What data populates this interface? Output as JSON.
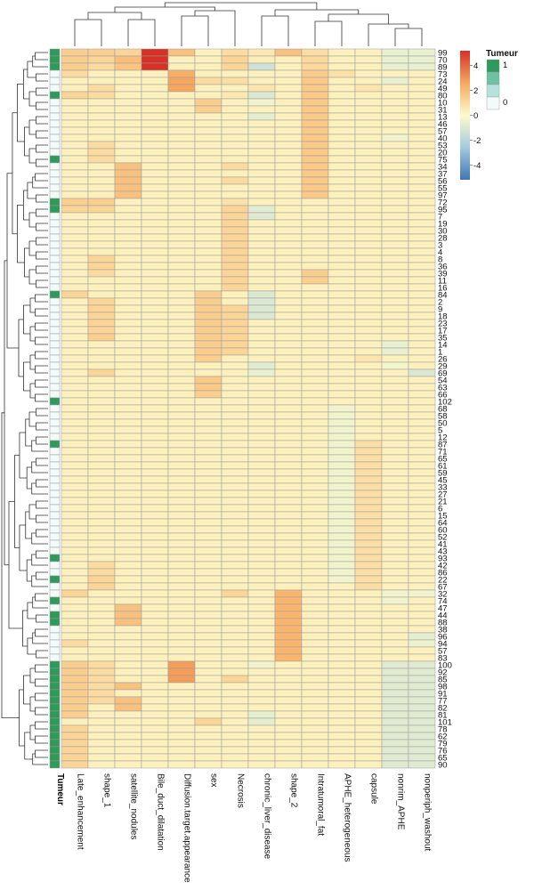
{
  "chart_data": {
    "type": "heatmap",
    "title": "",
    "columns": [
      "Late_enhancement",
      "shape_1",
      "satellite_nodules",
      "Bile_duct_dilatation",
      "Diffusion.target.appearance",
      "sex",
      "Necrosis",
      "chronic_liver_disease",
      "shape_2",
      "Intratumoral_fat",
      "APHE_heterogeneous",
      "capsule",
      "nonrim_APHE",
      "nonperiph_washout"
    ],
    "rows": [
      "99",
      "70",
      "89",
      "73",
      "24",
      "49",
      "80",
      "10",
      "31",
      "13",
      "46",
      "57",
      "40",
      "53",
      "20",
      "75",
      "34",
      "37",
      "56",
      "55",
      "97",
      "72",
      "95",
      "7",
      "19",
      "30",
      "28",
      "3",
      "4",
      "8",
      "36",
      "39",
      "11",
      "16",
      "84",
      "2",
      "9",
      "18",
      "23",
      "17",
      "35",
      "14",
      "1",
      "26",
      "29",
      "69",
      "54",
      "63",
      "66",
      "102",
      "68",
      "58",
      "50",
      "5",
      "12",
      "87",
      "71",
      "65",
      "61",
      "59",
      "45",
      "33",
      "27",
      "21",
      "6",
      "15",
      "64",
      "60",
      "52",
      "41",
      "43",
      "93",
      "42",
      "86",
      "22",
      "67",
      "32",
      "74",
      "47",
      "44",
      "88",
      "38",
      "96",
      "94",
      "57",
      "83",
      "100",
      "92",
      "85",
      "98",
      "91",
      "77",
      "82",
      "81",
      "101",
      "78",
      "62",
      "79",
      "76",
      "65",
      "90"
    ],
    "tumeur": [
      1,
      1,
      1,
      0,
      0,
      0,
      1,
      0,
      0,
      0,
      0,
      0,
      0,
      0,
      0,
      1,
      0,
      0,
      0,
      0,
      0,
      1,
      1,
      0,
      0,
      0,
      0,
      0,
      0,
      0,
      0,
      0,
      0,
      0,
      1,
      0,
      0,
      0,
      0,
      0,
      0,
      0,
      0,
      0,
      0,
      0,
      0,
      0,
      0,
      1,
      0,
      0,
      0,
      0,
      0,
      1,
      0,
      0,
      0,
      0,
      0,
      0,
      0,
      0,
      0,
      0,
      0,
      0,
      0,
      0,
      0,
      1,
      0,
      0,
      1,
      0,
      0,
      1,
      0,
      1,
      1,
      0,
      0,
      0,
      0,
      0,
      1,
      1,
      1,
      1,
      1,
      1,
      1,
      1,
      1,
      1,
      1,
      1,
      1,
      1,
      1
    ],
    "annotation_label": "Tumeur",
    "annotation_legend": {
      "title": "Tumeur",
      "levels": [
        "1",
        "0"
      ],
      "colors": [
        "#2e9a5b",
        "#f2fafa"
      ]
    },
    "color_scale": {
      "ticks": [
        4,
        2,
        0,
        -2,
        -4
      ],
      "range": [
        -5.2,
        5.2
      ],
      "stops": [
        {
          "v": -5.2,
          "c": "#3e78b6"
        },
        {
          "v": -2.5,
          "c": "#a9cce0"
        },
        {
          "v": 0,
          "c": "#fdfbc9"
        },
        {
          "v": 2.5,
          "c": "#f8ab62"
        },
        {
          "v": 5.2,
          "c": "#d73027"
        }
      ]
    },
    "values_note_default": 0.3,
    "cells": [
      [
        0,
        0,
        1.4
      ],
      [
        0,
        1,
        1.4
      ],
      [
        0,
        2,
        1.2
      ],
      [
        0,
        3,
        5.2
      ],
      [
        0,
        4,
        1.8
      ],
      [
        0,
        5,
        0.3
      ],
      [
        0,
        6,
        1.0
      ],
      [
        0,
        7,
        0.6
      ],
      [
        0,
        8,
        1.8
      ],
      [
        0,
        9,
        0.9
      ],
      [
        0,
        10,
        0.3
      ],
      [
        0,
        11,
        0.3
      ],
      [
        0,
        12,
        -0.6
      ],
      [
        0,
        13,
        -0.6
      ],
      [
        1,
        0,
        1.4
      ],
      [
        1,
        1,
        1.2
      ],
      [
        1,
        2,
        1.9
      ],
      [
        1,
        3,
        5.2
      ],
      [
        1,
        5,
        0.3
      ],
      [
        1,
        6,
        1.2
      ],
      [
        1,
        7,
        0.4
      ],
      [
        1,
        9,
        1.1
      ],
      [
        1,
        12,
        -0.6
      ],
      [
        1,
        13,
        -0.6
      ],
      [
        2,
        0,
        1.4
      ],
      [
        2,
        1,
        1.0
      ],
      [
        2,
        2,
        1.7
      ],
      [
        2,
        3,
        5.2
      ],
      [
        2,
        6,
        1.2
      ],
      [
        2,
        7,
        -1.4
      ],
      [
        2,
        9,
        1.1
      ],
      [
        2,
        12,
        -0.6
      ],
      [
        2,
        13,
        -0.6
      ],
      [
        3,
        0,
        1.0
      ],
      [
        3,
        4,
        2.4
      ],
      [
        3,
        9,
        1.5
      ],
      [
        3,
        10,
        0.8
      ],
      [
        4,
        4,
        2.6
      ],
      [
        4,
        5,
        1.0
      ],
      [
        4,
        6,
        0.9
      ],
      [
        4,
        9,
        1.6
      ],
      [
        4,
        12,
        -0.6
      ],
      [
        5,
        1,
        1.0
      ],
      [
        5,
        4,
        2.6
      ],
      [
        5,
        7,
        0.7
      ],
      [
        5,
        9,
        1.6
      ],
      [
        5,
        11,
        0.7
      ],
      [
        6,
        0,
        1.2
      ],
      [
        6,
        1,
        1.0
      ],
      [
        6,
        6,
        0.6
      ],
      [
        6,
        7,
        -1.0
      ],
      [
        6,
        9,
        1.6
      ],
      [
        7,
        5,
        1.4
      ],
      [
        7,
        7,
        -0.4
      ],
      [
        7,
        9,
        1.6
      ],
      [
        8,
        5,
        1.4
      ],
      [
        8,
        9,
        1.6
      ],
      [
        9,
        7,
        -0.7
      ],
      [
        9,
        9,
        1.6
      ],
      [
        10,
        9,
        1.6
      ],
      [
        11,
        9,
        1.6
      ],
      [
        12,
        9,
        1.6
      ],
      [
        12,
        12,
        -0.4
      ],
      [
        13,
        1,
        1.0
      ],
      [
        13,
        9,
        1.6
      ],
      [
        14,
        1,
        1.0
      ],
      [
        14,
        9,
        1.6
      ],
      [
        15,
        1,
        1.0
      ],
      [
        15,
        9,
        1.6
      ],
      [
        16,
        2,
        1.8
      ],
      [
        16,
        6,
        1.0
      ],
      [
        16,
        9,
        1.6
      ],
      [
        17,
        2,
        1.8
      ],
      [
        17,
        9,
        1.6
      ],
      [
        18,
        2,
        1.8
      ],
      [
        18,
        6,
        1.0
      ],
      [
        18,
        9,
        1.6
      ],
      [
        19,
        2,
        1.8
      ],
      [
        19,
        9,
        1.6
      ],
      [
        20,
        2,
        1.8
      ],
      [
        20,
        9,
        1.6
      ],
      [
        21,
        0,
        1.4
      ],
      [
        21,
        1,
        1.4
      ],
      [
        21,
        6,
        0.8
      ],
      [
        22,
        0,
        1.2
      ],
      [
        22,
        1,
        1.2
      ],
      [
        22,
        6,
        1.2
      ],
      [
        22,
        7,
        -0.8
      ],
      [
        23,
        6,
        1.2
      ],
      [
        23,
        7,
        -0.9
      ],
      [
        24,
        6,
        1.2
      ],
      [
        25,
        6,
        1.2
      ],
      [
        26,
        6,
        1.2
      ],
      [
        27,
        6,
        1.2
      ],
      [
        28,
        6,
        1.2
      ],
      [
        29,
        1,
        1.2
      ],
      [
        29,
        6,
        1.2
      ],
      [
        30,
        1,
        1.2
      ],
      [
        30,
        6,
        1.2
      ],
      [
        31,
        1,
        1.0
      ],
      [
        31,
        6,
        1.2
      ],
      [
        31,
        9,
        1.4
      ],
      [
        32,
        6,
        1.2
      ],
      [
        32,
        9,
        1.4
      ],
      [
        33,
        6,
        1.2
      ],
      [
        34,
        0,
        1.2
      ],
      [
        34,
        5,
        1.4
      ],
      [
        34,
        7,
        -1.0
      ],
      [
        35,
        1,
        1.2
      ],
      [
        35,
        5,
        1.4
      ],
      [
        35,
        7,
        -1.0
      ],
      [
        36,
        1,
        1.2
      ],
      [
        36,
        5,
        1.4
      ],
      [
        36,
        6,
        1.2
      ],
      [
        36,
        7,
        -1.0
      ],
      [
        37,
        1,
        1.2
      ],
      [
        37,
        5,
        1.4
      ],
      [
        37,
        6,
        1.2
      ],
      [
        37,
        7,
        -1.0
      ],
      [
        38,
        1,
        1.2
      ],
      [
        38,
        5,
        1.4
      ],
      [
        38,
        6,
        1.2
      ],
      [
        39,
        1,
        1.2
      ],
      [
        39,
        5,
        1.4
      ],
      [
        39,
        6,
        1.2
      ],
      [
        40,
        1,
        1.4
      ],
      [
        40,
        5,
        1.4
      ],
      [
        40,
        6,
        1.2
      ],
      [
        41,
        5,
        1.4
      ],
      [
        41,
        6,
        1.2
      ],
      [
        41,
        12,
        -0.6
      ],
      [
        42,
        5,
        1.4
      ],
      [
        42,
        6,
        1.2
      ],
      [
        42,
        12,
        -0.6
      ],
      [
        43,
        5,
        1.4
      ],
      [
        43,
        11,
        0.7
      ],
      [
        44,
        7,
        -0.8
      ],
      [
        44,
        12,
        -0.3
      ],
      [
        45,
        1,
        1.2
      ],
      [
        45,
        7,
        -0.6
      ],
      [
        45,
        13,
        -1.0
      ],
      [
        46,
        5,
        1.6
      ],
      [
        47,
        5,
        1.6
      ],
      [
        48,
        5,
        1.4
      ],
      [
        50,
        10,
        -0.4
      ],
      [
        51,
        10,
        -0.4
      ],
      [
        52,
        10,
        -0.4
      ],
      [
        53,
        10,
        -0.4
      ],
      [
        54,
        10,
        -0.4
      ],
      [
        55,
        10,
        -0.4
      ],
      [
        55,
        11,
        0.9
      ],
      [
        56,
        10,
        -0.4
      ],
      [
        56,
        11,
        0.9
      ],
      [
        57,
        10,
        -0.4
      ],
      [
        57,
        11,
        0.9
      ],
      [
        58,
        10,
        -0.4
      ],
      [
        58,
        11,
        0.9
      ],
      [
        59,
        10,
        -0.4
      ],
      [
        59,
        11,
        0.9
      ],
      [
        60,
        10,
        -0.4
      ],
      [
        60,
        11,
        0.9
      ],
      [
        61,
        10,
        -0.4
      ],
      [
        61,
        11,
        0.9
      ],
      [
        62,
        10,
        -0.4
      ],
      [
        62,
        11,
        0.9
      ],
      [
        63,
        10,
        -0.4
      ],
      [
        63,
        11,
        0.9
      ],
      [
        64,
        10,
        -0.4
      ],
      [
        64,
        11,
        0.9
      ],
      [
        65,
        10,
        -0.4
      ],
      [
        65,
        11,
        0.9
      ],
      [
        66,
        10,
        -0.4
      ],
      [
        66,
        11,
        0.9
      ],
      [
        67,
        10,
        -0.4
      ],
      [
        67,
        11,
        0.9
      ],
      [
        68,
        10,
        -0.4
      ],
      [
        68,
        11,
        0.9
      ],
      [
        69,
        10,
        -0.4
      ],
      [
        69,
        11,
        0.9
      ],
      [
        70,
        10,
        -0.4
      ],
      [
        70,
        11,
        0.9
      ],
      [
        71,
        10,
        -0.4
      ],
      [
        71,
        11,
        0.9
      ],
      [
        72,
        1,
        1.0
      ],
      [
        72,
        10,
        -0.4
      ],
      [
        72,
        11,
        0.9
      ],
      [
        73,
        1,
        1.0
      ],
      [
        73,
        10,
        -0.4
      ],
      [
        73,
        11,
        0.9
      ],
      [
        74,
        1,
        1.2
      ],
      [
        74,
        10,
        -0.4
      ],
      [
        74,
        11,
        0.9
      ],
      [
        75,
        1,
        1.2
      ],
      [
        75,
        11,
        0.9
      ],
      [
        76,
        0,
        1.2
      ],
      [
        76,
        6,
        1.2
      ],
      [
        76,
        8,
        2.2
      ],
      [
        76,
        12,
        -0.4
      ],
      [
        76,
        13,
        -0.4
      ],
      [
        77,
        8,
        2.2
      ],
      [
        77,
        12,
        -0.4
      ],
      [
        78,
        2,
        1.8
      ],
      [
        78,
        8,
        2.2
      ],
      [
        79,
        2,
        1.8
      ],
      [
        79,
        8,
        2.2
      ],
      [
        80,
        2,
        1.8
      ],
      [
        80,
        8,
        2.2
      ],
      [
        81,
        8,
        2.2
      ],
      [
        82,
        8,
        2.2
      ],
      [
        82,
        13,
        -0.7
      ],
      [
        83,
        0,
        1.0
      ],
      [
        83,
        8,
        2.2
      ],
      [
        83,
        13,
        -0.5
      ],
      [
        84,
        8,
        2.2
      ],
      [
        85,
        8,
        2.2
      ],
      [
        86,
        0,
        1.4
      ],
      [
        86,
        1,
        1.0
      ],
      [
        86,
        4,
        2.8
      ],
      [
        86,
        7,
        -0.4
      ],
      [
        86,
        12,
        -0.9
      ],
      [
        86,
        13,
        -0.9
      ],
      [
        87,
        0,
        1.4
      ],
      [
        87,
        1,
        1.0
      ],
      [
        87,
        4,
        2.8
      ],
      [
        87,
        12,
        -0.9
      ],
      [
        87,
        13,
        -0.9
      ],
      [
        88,
        0,
        1.4
      ],
      [
        88,
        1,
        1.0
      ],
      [
        88,
        4,
        2.8
      ],
      [
        88,
        6,
        1.2
      ],
      [
        88,
        12,
        -0.9
      ],
      [
        88,
        13,
        -0.9
      ],
      [
        89,
        0,
        1.4
      ],
      [
        89,
        1,
        1.0
      ],
      [
        89,
        2,
        1.8
      ],
      [
        89,
        12,
        -0.9
      ],
      [
        89,
        13,
        -0.9
      ],
      [
        90,
        0,
        1.4
      ],
      [
        90,
        1,
        1.0
      ],
      [
        90,
        12,
        -0.9
      ],
      [
        90,
        13,
        -0.9
      ],
      [
        91,
        0,
        1.4
      ],
      [
        91,
        1,
        1.0
      ],
      [
        91,
        2,
        1.8
      ],
      [
        91,
        12,
        -0.9
      ],
      [
        91,
        13,
        -0.9
      ],
      [
        92,
        0,
        1.4
      ],
      [
        92,
        2,
        1.8
      ],
      [
        92,
        12,
        -0.9
      ],
      [
        92,
        13,
        -0.9
      ],
      [
        93,
        0,
        1.4
      ],
      [
        93,
        7,
        -0.7
      ],
      [
        93,
        12,
        -0.9
      ],
      [
        93,
        13,
        -0.9
      ],
      [
        94,
        5,
        1.2
      ],
      [
        94,
        7,
        -0.7
      ],
      [
        94,
        12,
        -0.9
      ],
      [
        94,
        13,
        -0.9
      ],
      [
        95,
        0,
        1.2
      ],
      [
        95,
        12,
        -0.9
      ],
      [
        95,
        13,
        -0.9
      ],
      [
        96,
        0,
        1.2
      ],
      [
        96,
        12,
        -0.9
      ],
      [
        96,
        13,
        -0.9
      ],
      [
        97,
        0,
        1.2
      ],
      [
        97,
        12,
        -0.9
      ],
      [
        97,
        13,
        -0.9
      ],
      [
        98,
        0,
        1.2
      ],
      [
        98,
        12,
        -0.9
      ],
      [
        98,
        13,
        -0.9
      ],
      [
        99,
        0,
        1.2
      ],
      [
        99,
        12,
        -0.9
      ],
      [
        99,
        13,
        -0.9
      ],
      [
        100,
        0,
        1.2
      ],
      [
        100,
        12,
        -0.9
      ],
      [
        100,
        13,
        -0.9
      ]
    ]
  }
}
